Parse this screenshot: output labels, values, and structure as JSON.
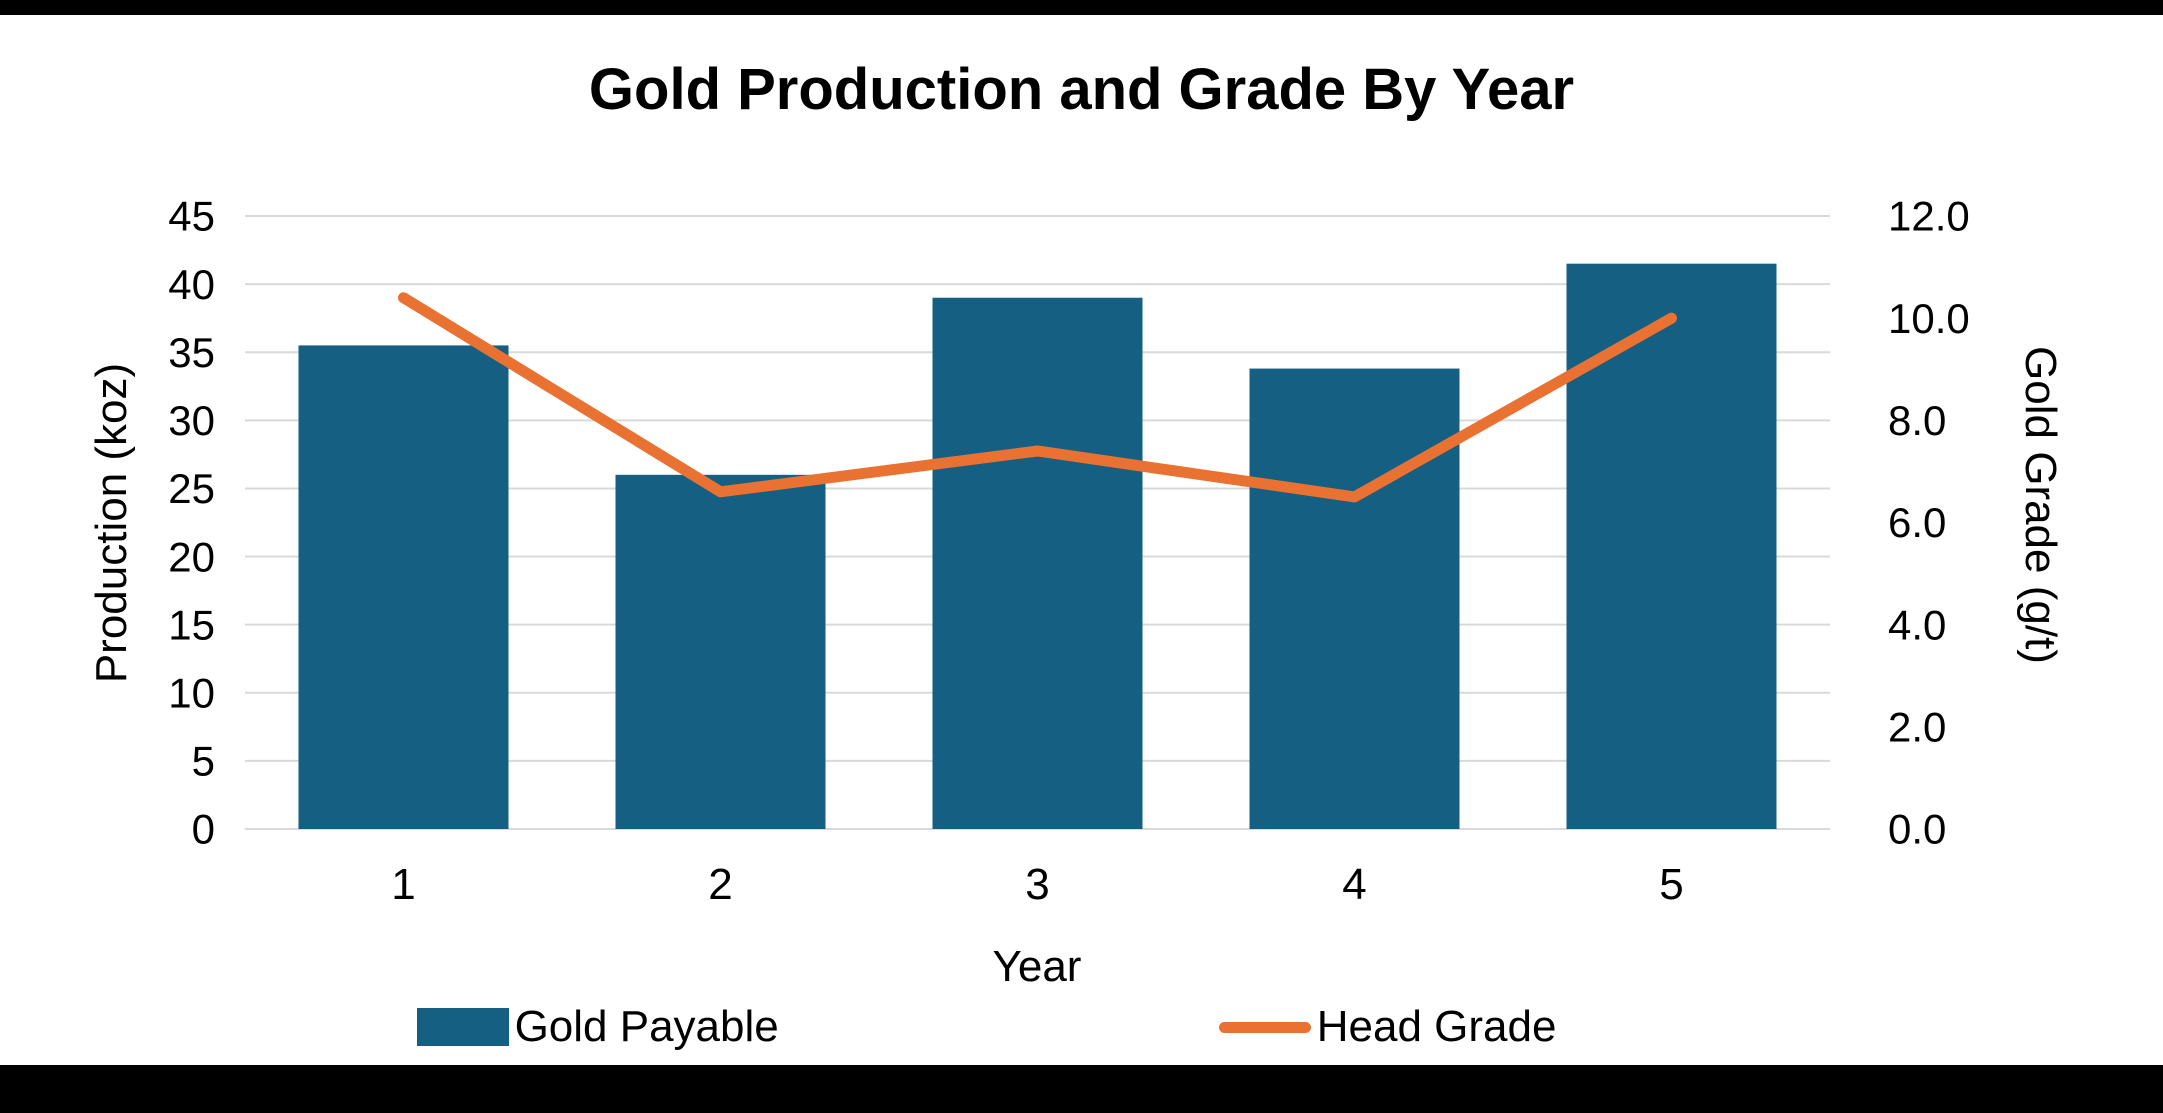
{
  "title": "Gold Production and Grade By Year",
  "axes": {
    "left": {
      "label": "Production (koz)",
      "ticks": [
        "45",
        "40",
        "35",
        "30",
        "25",
        "20",
        "15",
        "10",
        "5",
        "0"
      ]
    },
    "right": {
      "label": "Gold Grade (g/t)",
      "ticks": [
        "12.0",
        "10.0",
        "8.0",
        "6.0",
        "4.0",
        "2.0",
        "0.0"
      ]
    },
    "x": {
      "label": "Year",
      "categories": [
        "1",
        "2",
        "3",
        "4",
        "5"
      ]
    }
  },
  "legend": [
    {
      "label": "Gold Payable",
      "type": "bar",
      "color": "#156082"
    },
    {
      "label": "Head Grade",
      "type": "line",
      "color": "#E97132"
    }
  ],
  "colors": {
    "bar": "#156082",
    "line": "#E97132",
    "grid": "#D9D9D9",
    "text": "#000000",
    "background": "#FFFFFF"
  },
  "chart_data": {
    "type": "bar+line",
    "title": "Gold Production and Grade By Year",
    "xlabel": "Year",
    "ylabel_left": "Production (koz)",
    "ylabel_right": "Gold Grade (g/t)",
    "ylim_left": [
      0,
      45
    ],
    "ylim_right": [
      0,
      12
    ],
    "grid": true,
    "legend_position": "bottom",
    "categories": [
      1,
      2,
      3,
      4,
      5
    ],
    "series": [
      {
        "name": "Gold Payable",
        "type": "bar",
        "axis": "left",
        "color": "#156082",
        "values": [
          35.5,
          26.0,
          39.0,
          33.8,
          41.5
        ]
      },
      {
        "name": "Head Grade",
        "type": "line",
        "axis": "right",
        "color": "#E97132",
        "values": [
          10.4,
          6.6,
          7.4,
          6.5,
          10.0
        ]
      }
    ]
  }
}
